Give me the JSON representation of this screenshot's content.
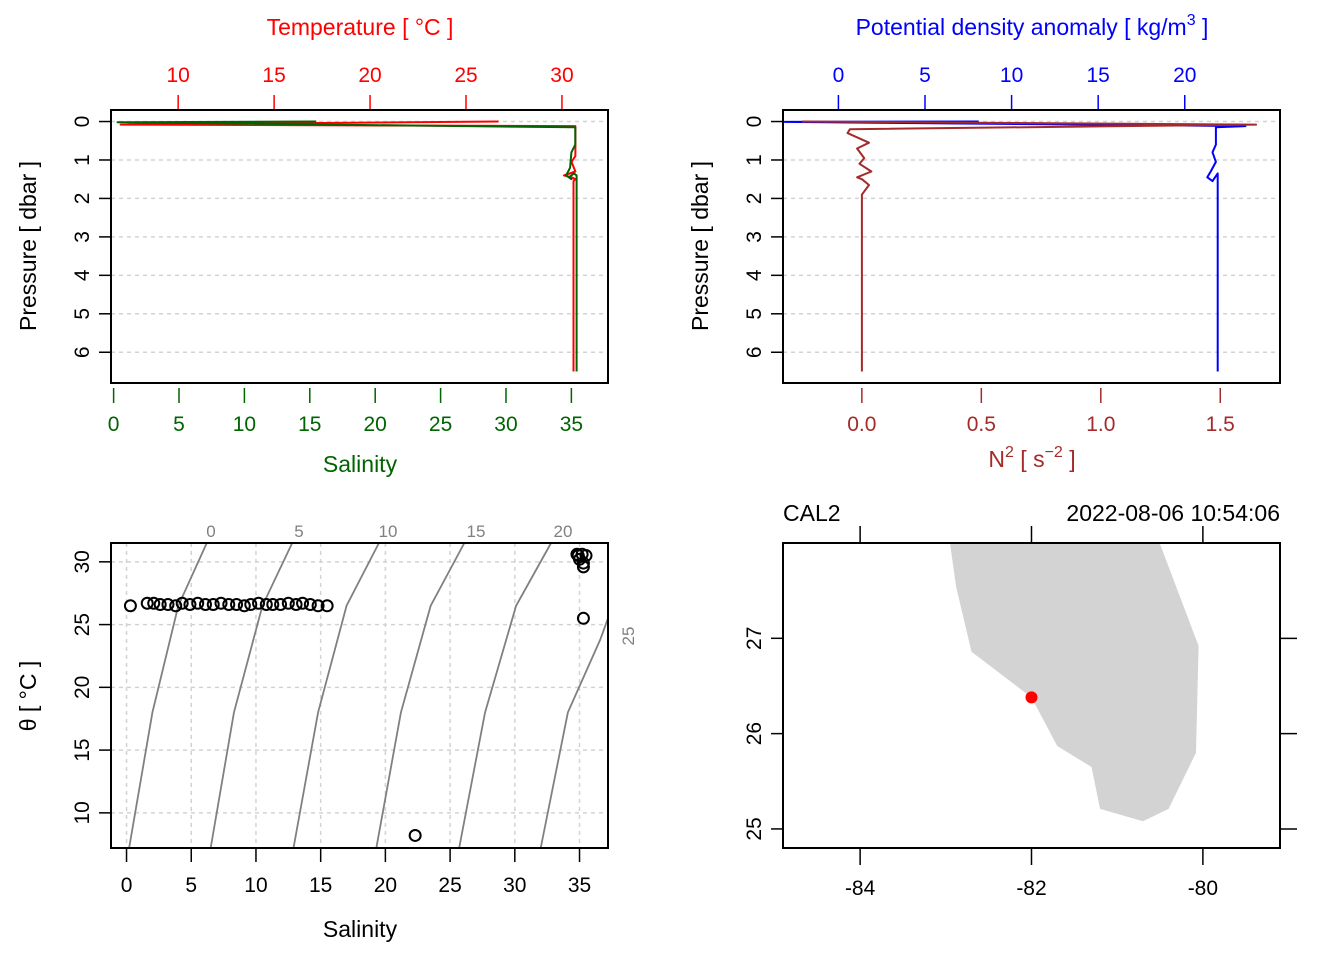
{
  "colors": {
    "temperature": "#ff0000",
    "salinity": "#006400",
    "density": "#0000ff",
    "n2": "#a52a2a",
    "grid": "#d3d3d3",
    "isopycnal": "#808080",
    "land": "#d3d3d3",
    "station": "#ff0000",
    "axis": "#000000"
  },
  "chart_data": [
    {
      "id": "profile-TS",
      "type": "line",
      "title_top": "Temperature [ °C ]",
      "xlabel": "Salinity",
      "ylabel": "Pressure [ dbar ]",
      "x_bottom": {
        "label": "Salinity",
        "ticks": [
          0,
          5,
          10,
          15,
          20,
          25,
          30,
          35
        ],
        "lim": [
          -0.2,
          37.8
        ]
      },
      "x_top": {
        "label": "Temperature [ °C ]",
        "ticks": [
          10,
          15,
          20,
          25,
          30
        ],
        "lim": [
          6.5,
          32.4
        ]
      },
      "y": {
        "ticks": [
          0,
          1,
          2,
          3,
          4,
          5,
          6
        ],
        "lim": [
          6.8,
          -0.3
        ],
        "reversed": true
      },
      "grid": true,
      "series": [
        {
          "name": "Temperature",
          "axis": "top",
          "points": [
            [
              26.7,
              0.0
            ],
            [
              7.0,
              0.08
            ],
            [
              30.7,
              0.12
            ],
            [
              30.7,
              0.9
            ],
            [
              30.5,
              1.05
            ],
            [
              30.7,
              1.3
            ],
            [
              30.1,
              1.4
            ],
            [
              30.5,
              1.45
            ],
            [
              30.7,
              1.5
            ],
            [
              30.6,
              1.55
            ],
            [
              30.6,
              6.5
            ]
          ]
        },
        {
          "name": "Salinity",
          "axis": "bottom",
          "points": [
            [
              15.5,
              0.0
            ],
            [
              0.3,
              0.02
            ],
            [
              35.3,
              0.15
            ],
            [
              35.3,
              0.6
            ],
            [
              35.0,
              0.8
            ],
            [
              34.9,
              1.2
            ],
            [
              34.6,
              1.4
            ],
            [
              35.0,
              1.5
            ],
            [
              34.8,
              1.45
            ],
            [
              35.2,
              1.35
            ],
            [
              35.4,
              1.4
            ],
            [
              35.4,
              6.5
            ]
          ]
        }
      ]
    },
    {
      "id": "profile-density-N2",
      "type": "line",
      "title_top": "Potential density anomaly [ kg/m3 ]",
      "xlabel": "N2 [ s-2 ]",
      "ylabel": "Pressure [ dbar ]",
      "x_bottom": {
        "label": "N² [ s⁻² ]",
        "ticks": [
          "0.0",
          "0.5",
          "1.0",
          "1.5"
        ],
        "lim": [
          -0.33,
          1.75
        ]
      },
      "x_top": {
        "label": "Potential density anomaly [ kg/m³ ]",
        "ticks": [
          0,
          5,
          10,
          15,
          20
        ],
        "lim": [
          -3.2,
          25.5
        ]
      },
      "y": {
        "ticks": [
          0,
          1,
          2,
          3,
          4,
          5,
          6
        ],
        "lim": [
          6.8,
          -0.3
        ],
        "reversed": true
      },
      "grid": true,
      "series": [
        {
          "name": "Potential density anomaly",
          "axis": "top",
          "points": [
            [
              8.1,
              0.0
            ],
            [
              -3.1,
              0.01
            ],
            [
              23.5,
              0.12
            ],
            [
              21.8,
              0.15
            ],
            [
              21.8,
              0.6
            ],
            [
              21.6,
              0.8
            ],
            [
              21.8,
              1.05
            ],
            [
              21.5,
              1.3
            ],
            [
              21.3,
              1.45
            ],
            [
              21.6,
              1.55
            ],
            [
              21.9,
              1.35
            ],
            [
              21.9,
              6.5
            ]
          ]
        },
        {
          "name": "N2",
          "axis": "bottom",
          "points": [
            [
              -0.25,
              0.0
            ],
            [
              1.65,
              0.08
            ],
            [
              -0.05,
              0.2
            ],
            [
              -0.06,
              0.3
            ],
            [
              0.03,
              0.55
            ],
            [
              -0.02,
              0.7
            ],
            [
              0.01,
              0.95
            ],
            [
              -0.01,
              1.1
            ],
            [
              0.04,
              1.3
            ],
            [
              -0.02,
              1.45
            ],
            [
              0.0,
              1.5
            ],
            [
              0.03,
              1.65
            ],
            [
              0.0,
              1.9
            ],
            [
              0.0,
              6.5
            ]
          ]
        }
      ]
    },
    {
      "id": "TS-diagram",
      "type": "scatter",
      "xlabel": "Salinity",
      "ylabel": "θ [ °C ]",
      "x": {
        "ticks": [
          0,
          5,
          10,
          15,
          20,
          25,
          30,
          35
        ],
        "lim": [
          -1.2,
          37.2
        ]
      },
      "y": {
        "ticks": [
          10,
          15,
          20,
          25,
          30
        ],
        "lim": [
          7.2,
          31.5
        ]
      },
      "grid": true,
      "isopycnal_labels": [
        0,
        5,
        10,
        15,
        20,
        25
      ],
      "isopycnals": [
        {
          "sigma": 0,
          "points": [
            [
              0.2,
              7.2
            ],
            [
              2.0,
              18.0
            ],
            [
              4.0,
              26.5
            ],
            [
              6.2,
              31.5
            ]
          ]
        },
        {
          "sigma": 5,
          "points": [
            [
              6.5,
              7.2
            ],
            [
              8.3,
              18.0
            ],
            [
              10.5,
              26.5
            ],
            [
              12.8,
              31.5
            ]
          ]
        },
        {
          "sigma": 10,
          "points": [
            [
              12.9,
              7.2
            ],
            [
              14.8,
              18.0
            ],
            [
              17.0,
              26.5
            ],
            [
              19.5,
              31.5
            ]
          ]
        },
        {
          "sigma": 15,
          "points": [
            [
              19.3,
              7.2
            ],
            [
              21.2,
              18.0
            ],
            [
              23.5,
              26.5
            ],
            [
              26.1,
              31.5
            ]
          ]
        },
        {
          "sigma": 20,
          "points": [
            [
              25.7,
              7.2
            ],
            [
              27.7,
              18.0
            ],
            [
              30.1,
              26.5
            ],
            [
              32.8,
              31.5
            ]
          ]
        },
        {
          "sigma": 25,
          "points": [
            [
              32.0,
              7.2
            ],
            [
              34.1,
              18.0
            ],
            [
              36.6,
              23.8
            ],
            [
              37.2,
              25.5
            ]
          ]
        }
      ],
      "points": [
        [
          0.3,
          26.5
        ],
        [
          1.6,
          26.7
        ],
        [
          2.1,
          26.7
        ],
        [
          2.6,
          26.6
        ],
        [
          3.2,
          26.6
        ],
        [
          3.8,
          26.5
        ],
        [
          4.3,
          26.7
        ],
        [
          4.9,
          26.6
        ],
        [
          5.5,
          26.7
        ],
        [
          6.1,
          26.6
        ],
        [
          6.7,
          26.6
        ],
        [
          7.3,
          26.7
        ],
        [
          7.9,
          26.6
        ],
        [
          8.5,
          26.6
        ],
        [
          9.1,
          26.5
        ],
        [
          9.6,
          26.6
        ],
        [
          10.2,
          26.7
        ],
        [
          10.8,
          26.6
        ],
        [
          11.3,
          26.6
        ],
        [
          11.9,
          26.6
        ],
        [
          12.5,
          26.7
        ],
        [
          13.1,
          26.6
        ],
        [
          13.6,
          26.7
        ],
        [
          14.2,
          26.6
        ],
        [
          14.8,
          26.5
        ],
        [
          15.5,
          26.5
        ],
        [
          34.8,
          30.6
        ],
        [
          35.2,
          30.6
        ],
        [
          35.5,
          30.5
        ],
        [
          35.0,
          30.2
        ],
        [
          35.3,
          29.9
        ],
        [
          35.3,
          29.6
        ],
        [
          34.9,
          30.5
        ],
        [
          35.3,
          25.5
        ],
        [
          22.3,
          8.2
        ]
      ]
    },
    {
      "id": "station-map",
      "type": "map",
      "title_left": "CAL2",
      "title_right": "2022-08-06 10:54:06",
      "x": {
        "ticks": [
          -84,
          -82,
          -80
        ],
        "lim": [
          -84.9,
          -79.1
        ]
      },
      "y": {
        "ticks": [
          25,
          26,
          27
        ],
        "lim": [
          24.8,
          28.0
        ]
      },
      "station": {
        "name": "CAL2",
        "lon": -82.0,
        "lat": 26.38
      },
      "coastline": [
        [
          -82.95,
          28.0
        ],
        [
          -82.88,
          27.54
        ],
        [
          -82.7,
          26.86
        ],
        [
          -82.0,
          26.38
        ],
        [
          -81.7,
          25.87
        ],
        [
          -81.3,
          25.65
        ],
        [
          -81.2,
          25.21
        ],
        [
          -80.7,
          25.08
        ],
        [
          -80.4,
          25.21
        ],
        [
          -80.08,
          25.8
        ],
        [
          -80.05,
          26.92
        ],
        [
          -80.5,
          28.0
        ]
      ]
    }
  ]
}
